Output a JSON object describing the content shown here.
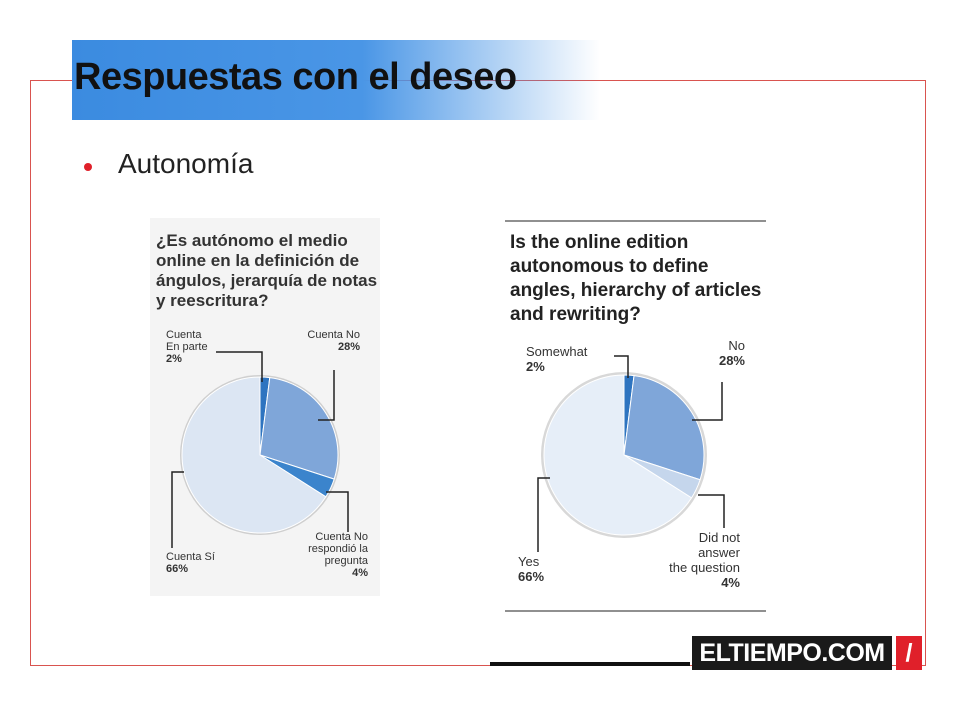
{
  "slide": {
    "title": "Respuestas con el deseo",
    "bullet": "Autonomía"
  },
  "chart_data": [
    {
      "type": "pie",
      "title_lines": [
        "¿Es autónomo el medio",
        "online en la definición de",
        "ángulos, jerarquía de notas",
        "y reescritura?"
      ],
      "slices": [
        {
          "name_lines": [
            "Cuenta",
            "En parte"
          ],
          "value": 2,
          "label": "2%",
          "color": "#2e74c0"
        },
        {
          "name_lines": [
            "Cuenta No"
          ],
          "value": 28,
          "label": "28%",
          "color": "#7fa6d9"
        },
        {
          "name_lines": [
            "Cuenta No",
            "respondió la",
            "pregunta"
          ],
          "value": 4,
          "label": "4%",
          "color": "#3b84cc"
        },
        {
          "name_lines": [
            "Cuenta Sí"
          ],
          "value": 66,
          "label": "66%",
          "color": "#dce6f3"
        }
      ]
    },
    {
      "type": "pie",
      "title_lines": [
        "Is the online edition",
        "autonomous to define",
        "angles, hierarchy of articles",
        "and rewriting?"
      ],
      "slices": [
        {
          "name_lines": [
            "Somewhat"
          ],
          "value": 2,
          "label": "2%",
          "color": "#2e74c0"
        },
        {
          "name_lines": [
            "No"
          ],
          "value": 28,
          "label": "28%",
          "color": "#7fa6d9"
        },
        {
          "name_lines": [
            "Did not",
            "answer",
            "the question"
          ],
          "value": 4,
          "label": "4%",
          "color": "#c5d6ec"
        },
        {
          "name_lines": [
            "Yes"
          ],
          "value": 66,
          "label": "66%",
          "color": "#e6eef8"
        }
      ]
    }
  ],
  "logo": {
    "main": "ELTIEMPO.COM",
    "slash": "/"
  }
}
